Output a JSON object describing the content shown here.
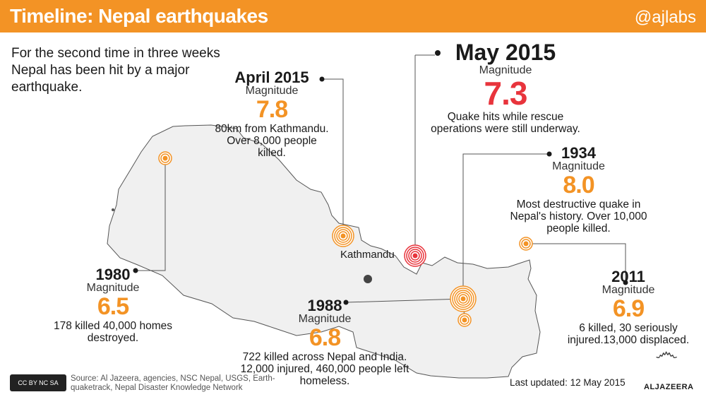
{
  "header": {
    "title": "Timeline: Nepal earthquakes",
    "handle": "@ajlabs"
  },
  "intro": "For the second time in three weeks Nepal has been hit by a major earthquake.",
  "city": "Kathmandu",
  "magnitude_label": "Magnitude",
  "colors": {
    "accent": "#f39325",
    "highlight": "#e8343c",
    "map": "#f0f0f0"
  },
  "events": [
    {
      "id": "may2015",
      "date": "May 2015",
      "magnitude": "7.3",
      "desc": "Quake hits while rescue operations were still underway."
    },
    {
      "id": "apr2015",
      "date": "April 2015",
      "magnitude": "7.8",
      "desc": "80km from Kathmandu. Over 8,000 people killed."
    },
    {
      "id": "1934",
      "date": "1934",
      "magnitude": "8.0",
      "desc": "Most destructive quake in Nepal's history. Over 10,000 people killed."
    },
    {
      "id": "1980",
      "date": "1980",
      "magnitude": "6.5",
      "desc": "178 killed 40,000 homes destroyed."
    },
    {
      "id": "1988",
      "date": "1988",
      "magnitude": "6.8",
      "desc": "722 killed across Nepal and India. 12,000 injured, 460,000 people left homeless."
    },
    {
      "id": "2011",
      "date": "2011",
      "magnitude": "6.9",
      "desc": "6 killed, 30 seriously injured.13,000 displaced."
    }
  ],
  "footer": {
    "source": "Source: Al Jazeera, agencies, NSC Nepal, USGS, Earth-quaketrack, Nepal Disaster Knowledge Network",
    "updated": "Last updated: 12 May 2015",
    "license": "CC BY NC SA",
    "brand": "ALJAZEERA"
  }
}
